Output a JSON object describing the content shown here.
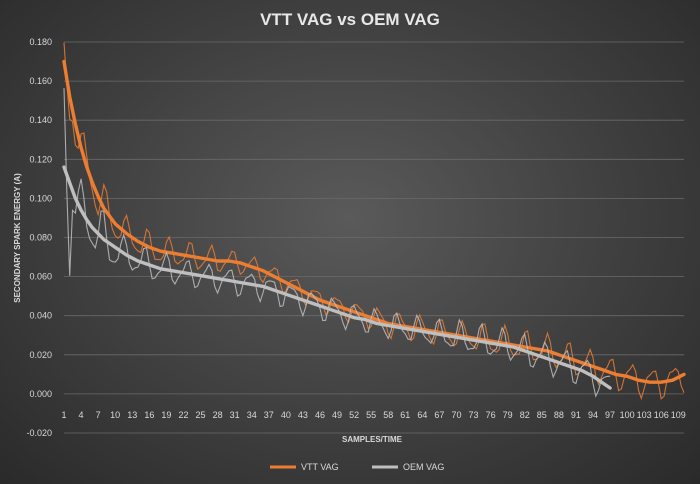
{
  "chart_data": {
    "type": "line",
    "title": "VTT VAG vs OEM VAG",
    "xlabel": "SAMPLES/TIME",
    "ylabel": "SECONDARY SPARK ENERGY (A)",
    "ylim": [
      -0.02,
      0.18
    ],
    "yticks": [
      "-0.020",
      "0.000",
      "0.020",
      "0.040",
      "0.060",
      "0.080",
      "0.100",
      "0.120",
      "0.140",
      "0.160",
      "0.180"
    ],
    "xlim": [
      1,
      110
    ],
    "xticks": [
      1,
      4,
      7,
      10,
      13,
      16,
      19,
      22,
      25,
      28,
      31,
      34,
      37,
      40,
      43,
      46,
      49,
      52,
      55,
      58,
      61,
      64,
      67,
      70,
      73,
      76,
      79,
      82,
      85,
      88,
      91,
      94,
      97,
      100,
      103,
      106,
      109
    ],
    "legend_position": "bottom-center",
    "series": [
      {
        "name": "VTT VAG",
        "color": "#ed7d31",
        "style": "raw + trend",
        "trend_x": [
          1,
          2,
          3,
          4,
          5,
          6,
          7,
          8,
          9,
          10,
          12,
          14,
          16,
          18,
          20,
          22,
          24,
          26,
          28,
          30,
          32,
          34,
          36,
          38,
          40,
          42,
          44,
          46,
          48,
          50,
          52,
          54,
          56,
          58,
          60,
          62,
          64,
          66,
          68,
          70,
          72,
          74,
          76,
          78,
          80,
          82,
          84,
          86,
          88,
          90,
          92,
          94,
          96,
          98,
          100,
          102,
          104,
          106,
          108,
          110
        ],
        "trend_y": [
          0.17,
          0.152,
          0.138,
          0.126,
          0.116,
          0.108,
          0.101,
          0.095,
          0.091,
          0.087,
          0.082,
          0.078,
          0.075,
          0.073,
          0.072,
          0.071,
          0.07,
          0.069,
          0.068,
          0.068,
          0.067,
          0.065,
          0.063,
          0.06,
          0.057,
          0.054,
          0.051,
          0.048,
          0.046,
          0.044,
          0.042,
          0.04,
          0.038,
          0.036,
          0.035,
          0.034,
          0.033,
          0.032,
          0.031,
          0.03,
          0.029,
          0.028,
          0.027,
          0.026,
          0.025,
          0.024,
          0.023,
          0.022,
          0.02,
          0.018,
          0.016,
          0.014,
          0.012,
          0.01,
          0.009,
          0.007,
          0.006,
          0.006,
          0.007,
          0.01
        ],
        "raw_amplitude": [
          0.01,
          0.007,
          0.006,
          0.005,
          0.005,
          0.005,
          0.006,
          0.006,
          0.007,
          0.007,
          0.007,
          0.007
        ]
      },
      {
        "name": "OEM VAG",
        "color": "#bfbfbf",
        "style": "raw + trend",
        "trend_x": [
          1,
          2,
          3,
          4,
          5,
          6,
          7,
          8,
          9,
          10,
          12,
          14,
          16,
          18,
          20,
          22,
          24,
          26,
          28,
          30,
          32,
          34,
          36,
          38,
          40,
          42,
          44,
          46,
          48,
          50,
          52,
          54,
          56,
          58,
          60,
          62,
          64,
          66,
          68,
          70,
          72,
          74,
          76,
          78,
          80,
          82,
          84,
          86,
          88,
          90,
          92,
          94,
          96,
          97
        ],
        "trend_y": [
          0.116,
          0.108,
          0.1,
          0.094,
          0.089,
          0.085,
          0.082,
          0.079,
          0.077,
          0.075,
          0.071,
          0.068,
          0.066,
          0.064,
          0.063,
          0.062,
          0.061,
          0.06,
          0.059,
          0.058,
          0.057,
          0.056,
          0.055,
          0.053,
          0.051,
          0.049,
          0.047,
          0.045,
          0.043,
          0.041,
          0.039,
          0.038,
          0.036,
          0.035,
          0.034,
          0.033,
          0.032,
          0.031,
          0.03,
          0.029,
          0.028,
          0.027,
          0.026,
          0.025,
          0.024,
          0.022,
          0.02,
          0.018,
          0.016,
          0.014,
          0.012,
          0.009,
          0.005,
          0.003
        ],
        "raw_amplitude": [
          0.012,
          0.007,
          0.006,
          0.006,
          0.006,
          0.006,
          0.006,
          0.007,
          0.007,
          0.007
        ]
      }
    ]
  }
}
